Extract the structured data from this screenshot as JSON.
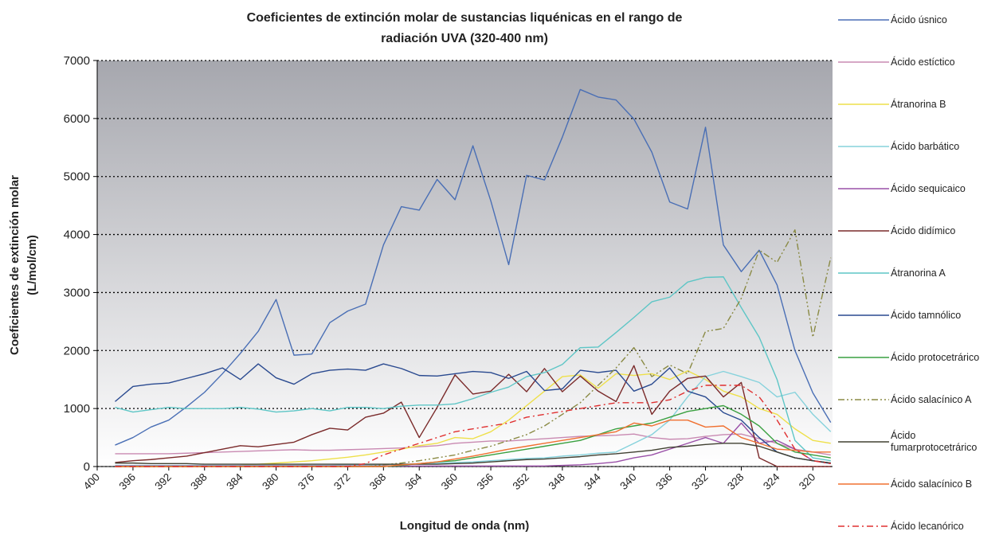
{
  "chart_data": {
    "type": "line",
    "title": "Coeficientes de extinción molar de sustancias liquénicas en el rango de radiación UVA (320-400 nm)",
    "xlabel": "Longitud de onda (nm)",
    "ylabel": "Coeficientes de extinción molar (L/mol/cm)",
    "x": [
      398,
      396,
      394,
      392,
      390,
      388,
      386,
      384,
      382,
      380,
      378,
      376,
      374,
      372,
      370,
      368,
      366,
      364,
      362,
      360,
      358,
      356,
      354,
      352,
      350,
      348,
      346,
      344,
      342,
      340,
      338,
      336,
      334,
      332,
      330,
      328,
      326,
      324,
      322,
      320,
      318
    ],
    "xlim": [
      400,
      317.8
    ],
    "xticks": [
      400,
      396,
      392,
      388,
      384,
      380,
      376,
      372,
      368,
      364,
      360,
      356,
      352,
      348,
      344,
      340,
      336,
      332,
      328,
      324,
      320
    ],
    "ylim": [
      0,
      7000
    ],
    "yticks": [
      0,
      1000,
      2000,
      3000,
      4000,
      5000,
      6000,
      7000
    ],
    "grid": true,
    "legend": "right",
    "series": [
      {
        "name": "Ácido úsnico",
        "color": "#4a6fb5",
        "style": "solid",
        "values": [
          370,
          500,
          680,
          800,
          1030,
          1280,
          1600,
          1950,
          2330,
          2880,
          1920,
          1940,
          2480,
          2680,
          2800,
          3820,
          4480,
          4420,
          4950,
          4600,
          5530,
          4580,
          3480,
          5020,
          4940,
          5680,
          6500,
          6370,
          6320,
          5990,
          5420,
          4560,
          4440,
          5850,
          3820,
          3360,
          3730,
          3130,
          2000,
          1270,
          760
        ]
      },
      {
        "name": "Ácido estíctico",
        "color": "#c98ab2",
        "style": "solid",
        "values": [
          220,
          220,
          220,
          220,
          230,
          240,
          250,
          260,
          270,
          280,
          290,
          280,
          280,
          290,
          300,
          310,
          320,
          340,
          360,
          400,
          420,
          440,
          440,
          460,
          480,
          500,
          520,
          530,
          540,
          560,
          500,
          470,
          480,
          520,
          550,
          560,
          480,
          400,
          300,
          250,
          200
        ]
      },
      {
        "name": "Átranorina B",
        "color": "#eee04a",
        "style": "solid",
        "values": [
          0,
          0,
          0,
          0,
          0,
          0,
          10,
          20,
          40,
          60,
          80,
          100,
          130,
          160,
          200,
          250,
          300,
          360,
          400,
          500,
          480,
          600,
          800,
          1050,
          1300,
          1550,
          1580,
          1350,
          1600,
          1570,
          1600,
          1500,
          1650,
          1500,
          1300,
          1200,
          1000,
          900,
          650,
          450,
          400
        ]
      },
      {
        "name": "Ácido barbático",
        "color": "#86d2dc",
        "style": "solid",
        "values": [
          20,
          20,
          20,
          20,
          20,
          20,
          20,
          20,
          20,
          20,
          20,
          20,
          20,
          30,
          30,
          30,
          40,
          50,
          60,
          70,
          80,
          100,
          120,
          140,
          150,
          180,
          200,
          230,
          250,
          400,
          550,
          800,
          1200,
          1550,
          1640,
          1550,
          1450,
          1200,
          1280,
          900,
          600
        ]
      },
      {
        "name": "Ácido sequicaico",
        "color": "#9a50a8",
        "style": "solid",
        "values": [
          10,
          10,
          10,
          10,
          10,
          10,
          10,
          10,
          10,
          10,
          10,
          10,
          10,
          10,
          10,
          10,
          10,
          10,
          10,
          10,
          10,
          10,
          10,
          10,
          10,
          20,
          30,
          50,
          80,
          150,
          200,
          300,
          400,
          500,
          400,
          750,
          400,
          450,
          300,
          100,
          50
        ]
      },
      {
        "name": "Ácido didímico",
        "color": "#7a2a2a",
        "style": "solid",
        "values": [
          70,
          100,
          120,
          150,
          180,
          240,
          300,
          360,
          340,
          380,
          420,
          550,
          660,
          630,
          850,
          920,
          1110,
          500,
          1020,
          1580,
          1250,
          1300,
          1590,
          1290,
          1690,
          1290,
          1560,
          1300,
          1120,
          1740,
          900,
          1300,
          1520,
          1560,
          1200,
          1450,
          150,
          0,
          0,
          0,
          0
        ]
      },
      {
        "name": "Átranorina A",
        "color": "#5ec6c6",
        "style": "solid",
        "values": [
          1020,
          940,
          980,
          1020,
          1000,
          1000,
          1000,
          1020,
          990,
          940,
          960,
          1000,
          960,
          1020,
          1020,
          1000,
          1040,
          1060,
          1060,
          1080,
          1170,
          1280,
          1370,
          1550,
          1620,
          1760,
          2050,
          2060,
          2310,
          2570,
          2840,
          2920,
          3180,
          3260,
          3270,
          2740,
          2230,
          1500,
          450,
          150,
          100
        ]
      },
      {
        "name": "Ácido tamnólico",
        "color": "#2a4a90",
        "style": "solid",
        "values": [
          1120,
          1380,
          1420,
          1440,
          1520,
          1600,
          1700,
          1500,
          1770,
          1530,
          1420,
          1600,
          1660,
          1680,
          1660,
          1770,
          1690,
          1570,
          1560,
          1600,
          1640,
          1620,
          1520,
          1640,
          1310,
          1340,
          1660,
          1620,
          1660,
          1300,
          1420,
          1700,
          1300,
          1200,
          930,
          800,
          500,
          250,
          150,
          100,
          60
        ]
      },
      {
        "name": "Ácido protocetrárico",
        "color": "#3aa040",
        "style": "solid",
        "values": [
          0,
          0,
          0,
          0,
          0,
          0,
          0,
          0,
          0,
          0,
          0,
          0,
          0,
          0,
          0,
          0,
          20,
          50,
          80,
          100,
          150,
          200,
          250,
          300,
          350,
          400,
          450,
          550,
          650,
          700,
          750,
          850,
          950,
          1000,
          1050,
          900,
          700,
          400,
          250,
          200,
          150
        ]
      },
      {
        "name": "Ácido salacínico A",
        "color": "#8a8a44",
        "style": "dash-dot-dot",
        "values": [
          0,
          0,
          0,
          0,
          0,
          0,
          0,
          0,
          0,
          0,
          0,
          0,
          0,
          0,
          0,
          30,
          60,
          100,
          150,
          200,
          280,
          350,
          450,
          550,
          700,
          900,
          1100,
          1400,
          1700,
          2050,
          1550,
          1750,
          1600,
          2330,
          2380,
          2900,
          3730,
          3520,
          4080,
          2230,
          3600
        ]
      },
      {
        "name": "Ácido fumarprotocetrárico",
        "color": "#404032",
        "style": "solid",
        "values": [
          60,
          60,
          50,
          50,
          50,
          40,
          40,
          40,
          40,
          40,
          40,
          40,
          40,
          40,
          40,
          40,
          40,
          40,
          40,
          50,
          60,
          80,
          100,
          120,
          130,
          150,
          170,
          200,
          220,
          250,
          280,
          330,
          350,
          380,
          400,
          400,
          350,
          250,
          150,
          100,
          60
        ]
      },
      {
        "name": "Ácido salacínico B",
        "color": "#f07030",
        "style": "solid",
        "values": [
          0,
          0,
          0,
          0,
          0,
          0,
          0,
          0,
          0,
          0,
          0,
          0,
          0,
          0,
          0,
          0,
          30,
          50,
          80,
          130,
          180,
          240,
          300,
          350,
          400,
          450,
          500,
          550,
          600,
          750,
          700,
          800,
          800,
          680,
          700,
          500,
          400,
          300,
          280,
          250,
          250
        ]
      },
      {
        "name": "Ácido lecanórico",
        "color": "#e03030",
        "style": "dash-dot",
        "values": [
          0,
          0,
          0,
          0,
          0,
          0,
          0,
          0,
          0,
          0,
          0,
          0,
          0,
          0,
          50,
          200,
          300,
          400,
          500,
          600,
          650,
          700,
          750,
          850,
          900,
          950,
          1000,
          1050,
          1100,
          1100,
          1100,
          1150,
          1300,
          1400,
          1400,
          1400,
          1200,
          800,
          300,
          100,
          50
        ]
      }
    ]
  }
}
